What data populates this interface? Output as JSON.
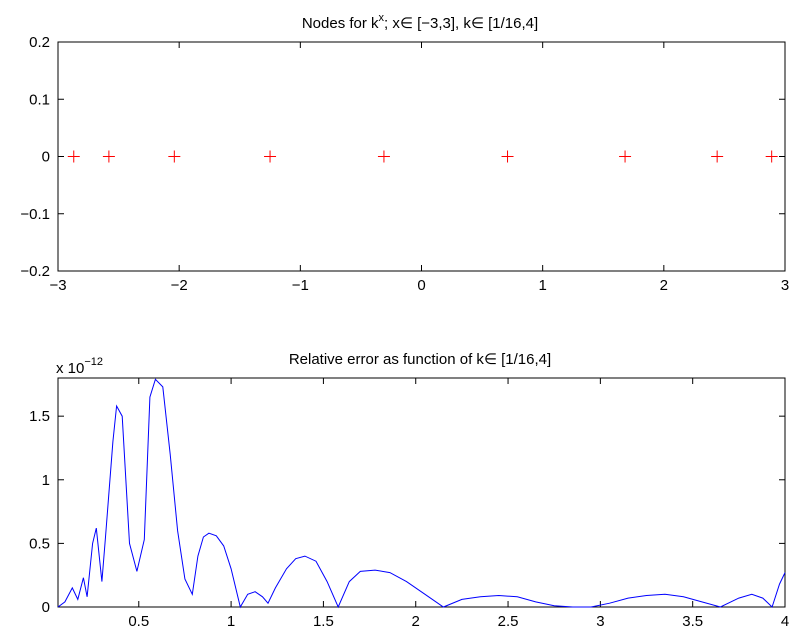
{
  "chart_data": [
    {
      "type": "scatter",
      "title": "Nodes for k^x; x∈ [−3,3], k∈ [1/16,4]",
      "title_parts": {
        "base": "Nodes for k",
        "sup": "x",
        "rest": "; x∈ [−3,3], k∈ [1/16,4]"
      },
      "xlabel": "",
      "ylabel": "",
      "xlim": [
        -3,
        3
      ],
      "ylim": [
        -0.2,
        0.2
      ],
      "x_ticks": [
        -3,
        -2,
        -1,
        0,
        1,
        2,
        3
      ],
      "x_tick_labels": [
        "−3",
        "−2",
        "−1",
        "0",
        "1",
        "2",
        "3"
      ],
      "y_ticks": [
        -0.2,
        -0.1,
        0,
        0.1,
        0.2
      ],
      "y_tick_labels": [
        "−0.2",
        "−0.1",
        "0",
        "0.1",
        "0.2"
      ],
      "grid": false,
      "marker": "+",
      "color": "#ff0000",
      "series": [
        {
          "x": [
            -2.87,
            -2.58,
            -2.04,
            -1.25,
            -0.31,
            0.71,
            1.68,
            2.44,
            2.89
          ],
          "y": [
            0,
            0,
            0,
            0,
            0,
            0,
            0,
            0,
            0
          ]
        }
      ]
    },
    {
      "type": "line",
      "title": "Relative error as function of k∈ [1/16,4]",
      "exponent_label": {
        "base": "x 10",
        "exp": "−12"
      },
      "xlabel": "",
      "ylabel": "",
      "xlim": [
        0.0625,
        4
      ],
      "ylim": [
        0,
        1.8
      ],
      "x_ticks": [
        0.5,
        1,
        1.5,
        2,
        2.5,
        3,
        3.5,
        4
      ],
      "x_tick_labels": [
        "0.5",
        "1",
        "1.5",
        "2",
        "2.5",
        "3",
        "3.5",
        "4"
      ],
      "y_ticks": [
        0,
        0.5,
        1,
        1.5
      ],
      "y_tick_labels": [
        "0",
        "0.5",
        "1",
        "1.5"
      ],
      "grid": false,
      "color": "#0000ff",
      "series": [
        {
          "x": [
            0.0625,
            0.1,
            0.14,
            0.17,
            0.2,
            0.22,
            0.25,
            0.27,
            0.3,
            0.32,
            0.36,
            0.38,
            0.41,
            0.45,
            0.49,
            0.53,
            0.56,
            0.59,
            0.63,
            0.67,
            0.71,
            0.75,
            0.79,
            0.82,
            0.85,
            0.88,
            0.92,
            0.96,
            1.0,
            1.05,
            1.09,
            1.13,
            1.17,
            1.2,
            1.24,
            1.3,
            1.35,
            1.4,
            1.46,
            1.52,
            1.58,
            1.64,
            1.7,
            1.78,
            1.86,
            1.95,
            2.05,
            2.15,
            2.25,
            2.35,
            2.45,
            2.55,
            2.65,
            2.75,
            2.85,
            2.95,
            3.05,
            3.15,
            3.25,
            3.35,
            3.45,
            3.55,
            3.65,
            3.75,
            3.82,
            3.88,
            3.93,
            3.97,
            4.0
          ],
          "y": [
            0.0,
            0.04,
            0.15,
            0.06,
            0.23,
            0.08,
            0.5,
            0.62,
            0.2,
            0.55,
            1.3,
            1.58,
            1.5,
            0.5,
            0.28,
            0.53,
            1.65,
            1.79,
            1.73,
            1.2,
            0.6,
            0.22,
            0.1,
            0.4,
            0.55,
            0.58,
            0.56,
            0.48,
            0.3,
            0.0,
            0.1,
            0.12,
            0.08,
            0.03,
            0.15,
            0.3,
            0.38,
            0.4,
            0.36,
            0.2,
            0.0,
            0.2,
            0.28,
            0.29,
            0.27,
            0.2,
            0.1,
            0.0,
            0.06,
            0.08,
            0.09,
            0.08,
            0.04,
            0.01,
            0.0,
            0.0,
            0.03,
            0.07,
            0.09,
            0.1,
            0.08,
            0.04,
            0.0,
            0.07,
            0.1,
            0.07,
            0.0,
            0.18,
            0.27
          ]
        }
      ]
    }
  ]
}
